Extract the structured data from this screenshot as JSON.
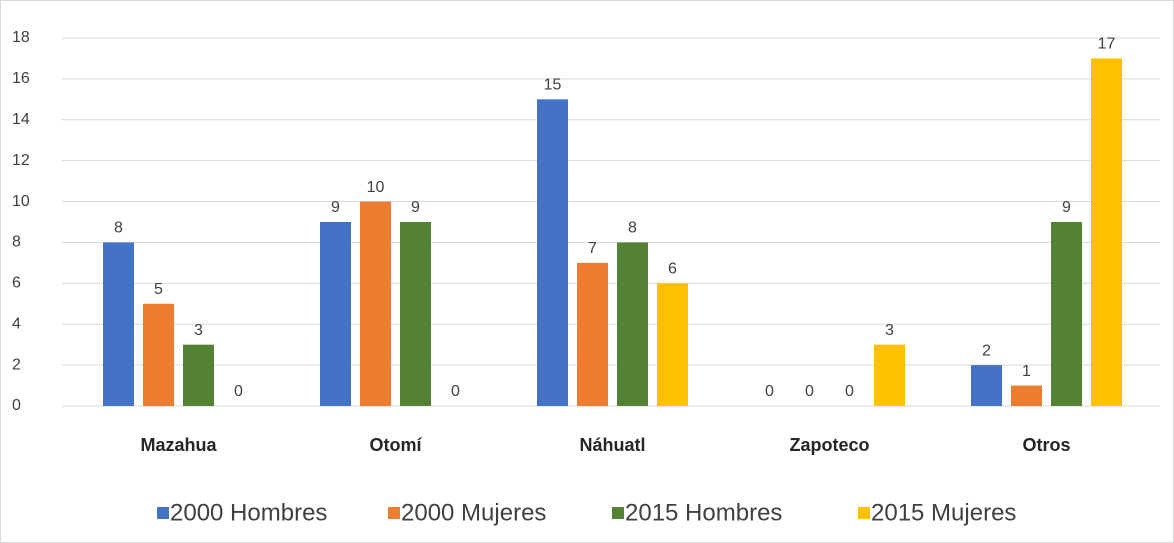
{
  "chart_data": {
    "type": "bar",
    "categories": [
      "Mazahua",
      "Otomí",
      "Náhuatl",
      "Zapoteco",
      "Otros"
    ],
    "series": [
      {
        "name": "2000 Hombres",
        "color": "#4472c4",
        "values": [
          8,
          9,
          15,
          0,
          2
        ]
      },
      {
        "name": "2000 Mujeres",
        "color": "#ed7d31",
        "values": [
          5,
          10,
          7,
          0,
          1
        ]
      },
      {
        "name": "2015 Hombres",
        "color": "#548235",
        "values": [
          3,
          9,
          8,
          0,
          9
        ]
      },
      {
        "name": "2015 Mujeres",
        "color": "#ffc000",
        "values": [
          0,
          0,
          6,
          3,
          17
        ]
      }
    ],
    "ylim": [
      0,
      18
    ],
    "yticks": [
      0,
      2,
      4,
      6,
      8,
      10,
      12,
      14,
      16,
      18
    ],
    "grid": true,
    "legend": "bottom"
  }
}
